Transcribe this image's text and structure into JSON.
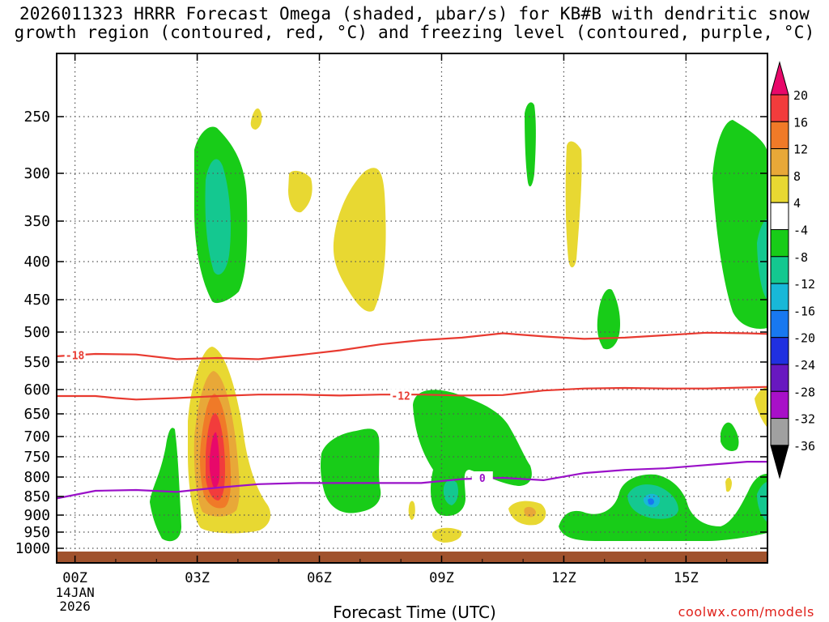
{
  "title_line1": "2026011323 HRRR Forecast Omega (shaded, μbar/s) for KB#B with dendritic snow",
  "title_line2": "growth region (contoured, red, °C) and freezing level (contoured, purple, °C)",
  "credit": "coolwx.com/models",
  "chart_data": {
    "type": "heatmap",
    "xlabel": "Forecast Time (UTC)",
    "x_ticks": [
      {
        "hour": 0,
        "label": "00Z",
        "sub": [
          "14JAN",
          "2026"
        ]
      },
      {
        "hour": 3,
        "label": "03Z"
      },
      {
        "hour": 6,
        "label": "06Z"
      },
      {
        "hour": 9,
        "label": "09Z"
      },
      {
        "hour": 12,
        "label": "12Z"
      },
      {
        "hour": 15,
        "label": "15Z"
      }
    ],
    "xlim": [
      -0.45,
      17
    ],
    "y_ticks": [
      250,
      300,
      350,
      400,
      450,
      500,
      550,
      600,
      650,
      700,
      750,
      800,
      850,
      900,
      950,
      1000
    ],
    "ylim_hpa": [
      1030,
      200
    ],
    "colorbar": {
      "levels": [
        "20",
        "16",
        "12",
        "8",
        "4",
        "-4",
        "-8",
        "-12",
        "-16",
        "-20",
        "-24",
        "-28",
        "-32",
        "-36"
      ],
      "colors": [
        "#e8086a",
        "#f23c3c",
        "#f07a28",
        "#e8a838",
        "#e8d832",
        "#ffffff",
        "#18cc18",
        "#14c890",
        "#18b8d8",
        "#1878f0",
        "#2030e0",
        "#6818c0",
        "#a810c8",
        "#a0a0a0",
        "#000000"
      ]
    },
    "contours": {
      "dgz_red": [
        {
          "label": "-18",
          "label_at": {
            "hour": 0,
            "hpa": 538
          },
          "points": [
            [
              -0.45,
              540
            ],
            [
              0.5,
              536
            ],
            [
              1.5,
              537
            ],
            [
              2.5,
              545
            ],
            [
              3.5,
              543
            ],
            [
              4.5,
              545
            ],
            [
              5.5,
              538
            ],
            [
              6.5,
              530
            ],
            [
              7.5,
              520
            ],
            [
              8.5,
              513
            ],
            [
              9.5,
              509
            ],
            [
              10.5,
              502
            ],
            [
              11.5,
              507
            ],
            [
              12.5,
              511
            ],
            [
              13.5,
              509
            ],
            [
              14.5,
              505
            ],
            [
              15.5,
              501
            ],
            [
              16.5,
              502
            ],
            [
              17,
              503
            ]
          ]
        },
        {
          "label": "-12",
          "label_at": {
            "hour": 8,
            "hpa": 612
          },
          "points": [
            [
              -0.45,
              613
            ],
            [
              0.5,
              613
            ],
            [
              1,
              617
            ],
            [
              1.5,
              620
            ],
            [
              2.5,
              617
            ],
            [
              3.5,
              613
            ],
            [
              4.5,
              610
            ],
            [
              5.5,
              610
            ],
            [
              6.5,
              612
            ],
            [
              7.5,
              610
            ],
            [
              8.5,
              610
            ],
            [
              9.5,
              612
            ],
            [
              10.5,
              611
            ],
            [
              11.5,
              602
            ],
            [
              12.5,
              598
            ],
            [
              13.5,
              597
            ],
            [
              14.5,
              598
            ],
            [
              15.5,
              598
            ],
            [
              16.5,
              596
            ],
            [
              17,
              595
            ]
          ]
        }
      ],
      "freezing_purple": {
        "label": "0",
        "label_at": {
          "hour": 10,
          "hpa": 802
        },
        "points": [
          [
            -0.45,
            855
          ],
          [
            0.5,
            835
          ],
          [
            1.5,
            833
          ],
          [
            2.5,
            838
          ],
          [
            3.5,
            827
          ],
          [
            4.5,
            818
          ],
          [
            5.5,
            815
          ],
          [
            6.5,
            815
          ],
          [
            7.5,
            815
          ],
          [
            8.5,
            815
          ],
          [
            9.5,
            805
          ],
          [
            10.5,
            802
          ],
          [
            11.5,
            808
          ],
          [
            12.5,
            790
          ],
          [
            13.5,
            782
          ],
          [
            14.5,
            778
          ],
          [
            15.5,
            770
          ],
          [
            16.5,
            762
          ],
          [
            17,
            762
          ]
        ]
      }
    }
  }
}
